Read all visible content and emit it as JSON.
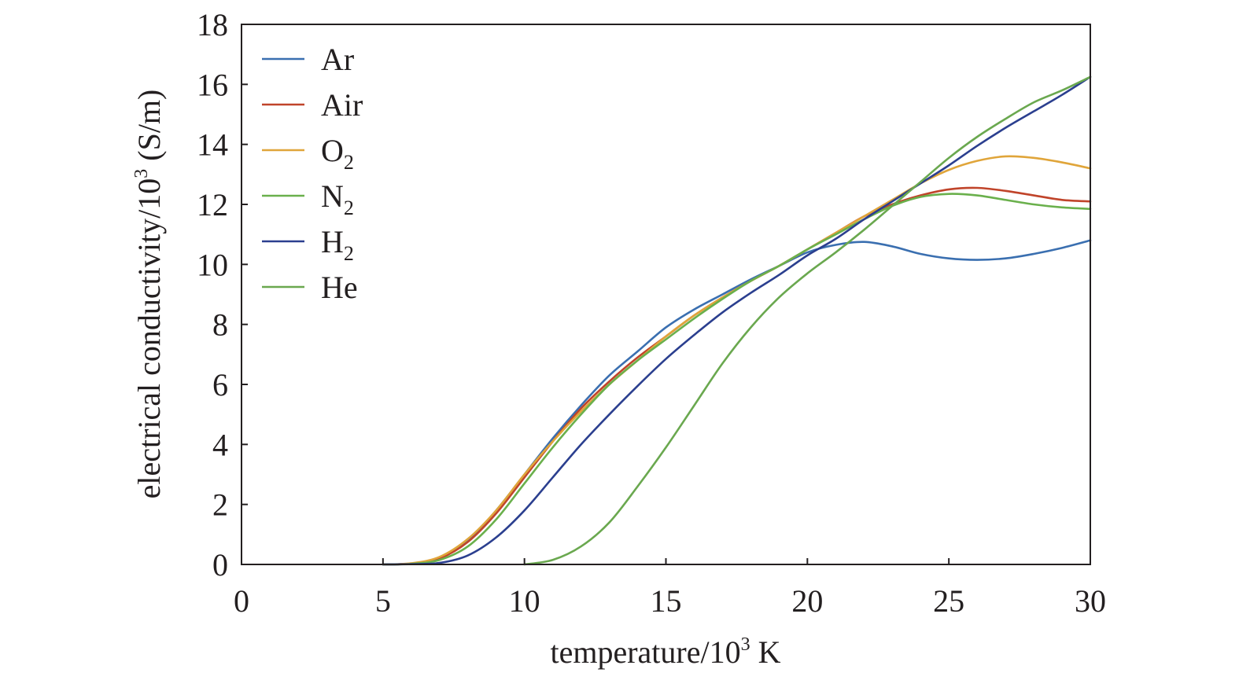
{
  "chart_data": {
    "type": "line",
    "xlabel": "temperature/10³ K",
    "ylabel": "electrical conductivity/10³ (S/m)",
    "xlim": [
      0,
      30
    ],
    "ylim": [
      0,
      18
    ],
    "xticks": [
      "0",
      "5",
      "10",
      "15",
      "20",
      "25",
      "30"
    ],
    "yticks": [
      "0",
      "2",
      "4",
      "6",
      "8",
      "10",
      "12",
      "14",
      "16",
      "18"
    ],
    "grid": false,
    "legend_position": "top-left",
    "series": [
      {
        "name": "Ar",
        "name_base": "Ar",
        "name_sub": "",
        "color": "#3a6fb0",
        "x": [
          5,
          6,
          7,
          8,
          9,
          10,
          11,
          12,
          13,
          14,
          15,
          16,
          17,
          18,
          19,
          20,
          21,
          22,
          23,
          24,
          25,
          26,
          27,
          28,
          29,
          30
        ],
        "y": [
          0,
          0.03,
          0.2,
          0.8,
          1.8,
          3.0,
          4.2,
          5.3,
          6.3,
          7.1,
          7.9,
          8.5,
          9.0,
          9.5,
          9.95,
          10.4,
          10.65,
          10.75,
          10.6,
          10.35,
          10.2,
          10.15,
          10.2,
          10.35,
          10.55,
          10.8
        ]
      },
      {
        "name": "Air",
        "name_base": "Air",
        "name_sub": "",
        "color": "#c0442a",
        "x": [
          5,
          6,
          7,
          8,
          9,
          10,
          11,
          12,
          13,
          14,
          15,
          16,
          17,
          18,
          19,
          20,
          21,
          22,
          23,
          24,
          25,
          26,
          27,
          28,
          29,
          30
        ],
        "y": [
          0,
          0.03,
          0.2,
          0.75,
          1.7,
          2.9,
          4.1,
          5.2,
          6.1,
          6.9,
          7.6,
          8.3,
          8.9,
          9.45,
          9.95,
          10.5,
          11.05,
          11.6,
          12.0,
          12.3,
          12.5,
          12.55,
          12.45,
          12.3,
          12.15,
          12.1
        ]
      },
      {
        "name": "O2",
        "name_base": "O",
        "name_sub": "2",
        "color": "#e0a53a",
        "x": [
          5,
          6,
          7,
          8,
          9,
          10,
          11,
          12,
          13,
          14,
          15,
          16,
          17,
          18,
          19,
          20,
          21,
          22,
          23,
          24,
          25,
          26,
          27,
          28,
          29,
          30
        ],
        "y": [
          0,
          0.04,
          0.25,
          0.85,
          1.8,
          3.0,
          4.1,
          5.1,
          6.0,
          6.8,
          7.6,
          8.3,
          8.9,
          9.45,
          9.95,
          10.5,
          11.05,
          11.6,
          12.15,
          12.7,
          13.15,
          13.45,
          13.6,
          13.55,
          13.4,
          13.2
        ]
      },
      {
        "name": "N2",
        "name_base": "N",
        "name_sub": "2",
        "color": "#6ab04c",
        "x": [
          5,
          6,
          7,
          8,
          9,
          10,
          11,
          12,
          13,
          14,
          15,
          16,
          17,
          18,
          19,
          20,
          21,
          22,
          23,
          24,
          25,
          26,
          27,
          28,
          29,
          30
        ],
        "y": [
          0,
          0.02,
          0.15,
          0.6,
          1.5,
          2.7,
          3.9,
          5.0,
          6.0,
          6.8,
          7.5,
          8.2,
          8.85,
          9.45,
          9.95,
          10.5,
          11.0,
          11.5,
          11.95,
          12.25,
          12.35,
          12.3,
          12.15,
          12.0,
          11.9,
          11.85
        ]
      },
      {
        "name": "H2",
        "name_base": "H",
        "name_sub": "2",
        "color": "#2b3f8f",
        "x": [
          5,
          6,
          7,
          8,
          9,
          10,
          11,
          12,
          13,
          14,
          15,
          16,
          17,
          18,
          19,
          20,
          21,
          22,
          23,
          24,
          25,
          26,
          27,
          28,
          29,
          30
        ],
        "y": [
          0,
          0.01,
          0.05,
          0.3,
          0.9,
          1.8,
          2.9,
          4.0,
          5.0,
          5.95,
          6.85,
          7.65,
          8.4,
          9.05,
          9.65,
          10.3,
          10.85,
          11.5,
          12.1,
          12.7,
          13.3,
          13.95,
          14.55,
          15.1,
          15.65,
          16.25
        ]
      },
      {
        "name": "He",
        "name_base": "He",
        "name_sub": "",
        "color": "#6aa84f",
        "x": [
          10,
          11,
          12,
          13,
          14,
          15,
          16,
          17,
          18,
          19,
          20,
          21,
          22,
          23,
          24,
          25,
          26,
          27,
          28,
          29,
          30
        ],
        "y": [
          0,
          0.15,
          0.6,
          1.4,
          2.6,
          3.9,
          5.3,
          6.7,
          7.9,
          8.9,
          9.7,
          10.4,
          11.15,
          11.95,
          12.75,
          13.55,
          14.25,
          14.85,
          15.4,
          15.8,
          16.25
        ]
      }
    ]
  }
}
